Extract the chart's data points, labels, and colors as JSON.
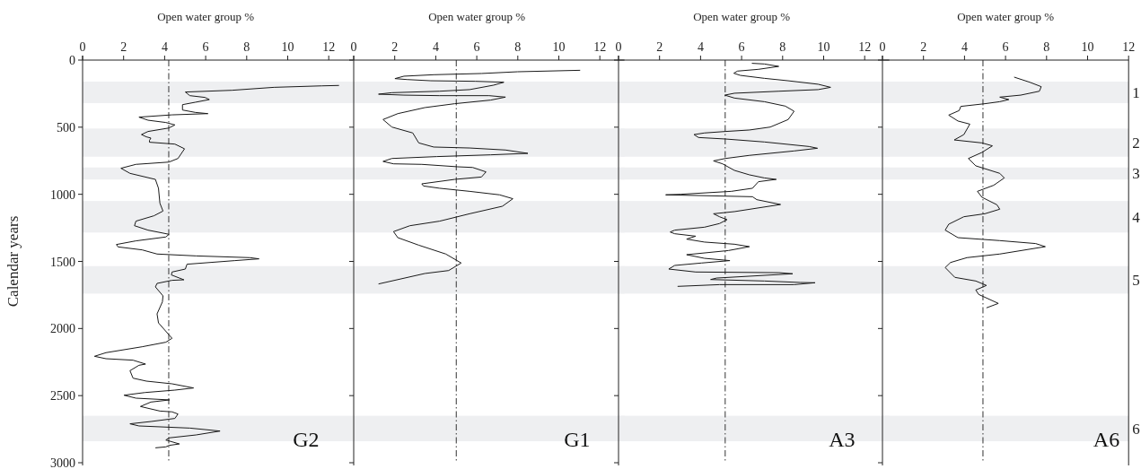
{
  "chart_data": [
    {
      "type": "line",
      "xlabel": "Open water group %",
      "ylabel": "Calendar years",
      "annotations": [
        "G2"
      ],
      "xlim": [
        0,
        13.2
      ],
      "xticks": [
        0,
        2,
        4,
        6,
        8,
        10,
        12
      ],
      "ylim": [
        3000,
        0
      ],
      "yticks": [
        0,
        500,
        1000,
        1500,
        2000,
        2500,
        3000
      ],
      "line_style": "solid",
      "marker": "none",
      "bands": [
        {
          "axis": "y",
          "from": 160,
          "to": 320,
          "color": "#eeeff1"
        },
        {
          "axis": "y",
          "from": 510,
          "to": 720,
          "color": "#eeeff1"
        },
        {
          "axis": "y",
          "from": 800,
          "to": 890,
          "color": "#eeeff1"
        },
        {
          "axis": "y",
          "from": 1050,
          "to": 1285,
          "color": "#eeeff1"
        },
        {
          "axis": "y",
          "from": 1535,
          "to": 1740,
          "color": "#eeeff1"
        },
        {
          "axis": "y",
          "from": 2650,
          "to": 2840,
          "color": "#eeeff1"
        }
      ],
      "ref_lines": [
        {
          "axis": "x",
          "value": 4.2,
          "color": "#333333",
          "line_style": "dashed"
        }
      ],
      "series": [
        {
          "color": "#1a1a1a",
          "x": [
            12.5,
            11.67,
            9.33,
            7.28,
            5.01,
            5.23,
            5.96,
            6.18,
            5.5,
            4.87,
            4.87,
            5.5,
            6.11,
            4.36,
            2.75,
            3.19,
            4.06,
            4.5,
            4.21,
            3.19,
            2.87,
            3.11,
            3.33,
            3.26,
            3.26,
            4.5,
            4.97,
            4.65,
            4.21,
            2.6,
            1.87,
            2.31,
            3.55,
            3.7,
            3.77,
            3.92,
            3.48,
            2.6,
            2.53,
            3.19,
            4.21,
            4.06,
            2.6,
            1.65,
            1.73,
            2.9,
            3.63,
            5.53,
            8.16,
            8.6,
            7.43,
            5.09,
            5.01,
            4.36,
            4.33,
            4.72,
            4.94,
            4.36,
            3.63,
            3.55,
            3.92,
            3.89,
            3.63,
            3.7,
            4.21,
            4.36,
            4.06,
            2.9,
            1.14,
            0.58,
            1.14,
            2.46,
            3.07,
            2.75,
            2.31,
            2.46,
            3.11,
            4.36,
            5.41,
            4.5,
            3.04,
            2.02,
            2.6,
            4.24,
            3.33,
            2.82,
            3.77,
            4.36,
            4.65,
            4.5,
            3.33,
            2.31,
            2.75,
            5.23,
            6.7,
            5.53,
            4.21,
            4.06,
            4.72,
            4.21,
            4.06,
            3.55
          ],
          "values": [
            189,
            192,
            203,
            225,
            238,
            265,
            278,
            294,
            314,
            332,
            372,
            390,
            399,
            408,
            425,
            448,
            465,
            483,
            506,
            532,
            555,
            572,
            581,
            599,
            612,
            626,
            661,
            733,
            760,
            777,
            806,
            844,
            889,
            955,
            1067,
            1125,
            1160,
            1200,
            1234,
            1267,
            1298,
            1318,
            1347,
            1374,
            1392,
            1414,
            1445,
            1459,
            1472,
            1481,
            1494,
            1521,
            1557,
            1579,
            1601,
            1624,
            1637,
            1641,
            1664,
            1690,
            1757,
            1802,
            1891,
            1958,
            2047,
            2073,
            2102,
            2136,
            2180,
            2207,
            2225,
            2236,
            2265,
            2274,
            2314,
            2370,
            2392,
            2412,
            2443,
            2459,
            2477,
            2497,
            2519,
            2532,
            2548,
            2581,
            2615,
            2621,
            2637,
            2670,
            2693,
            2710,
            2726,
            2742,
            2764,
            2793,
            2815,
            2831,
            2860,
            2871,
            2882,
            2889
          ]
        }
      ]
    },
    {
      "type": "line",
      "xlabel": "Open water group %",
      "annotations": [
        "G1"
      ],
      "xlim": [
        0,
        13.2
      ],
      "xticks": [
        0,
        2,
        4,
        6,
        8,
        10,
        12
      ],
      "ylim": [
        3000,
        0
      ],
      "yticks": [
        0,
        500,
        1000,
        1500,
        2000,
        2500,
        3000
      ],
      "tick_labels": "x",
      "line_style": "solid",
      "marker": "none",
      "bands": [
        {
          "axis": "y",
          "from": 160,
          "to": 320,
          "color": "#eeeff1"
        },
        {
          "axis": "y",
          "from": 510,
          "to": 720,
          "color": "#eeeff1"
        },
        {
          "axis": "y",
          "from": 800,
          "to": 890,
          "color": "#eeeff1"
        },
        {
          "axis": "y",
          "from": 1050,
          "to": 1285,
          "color": "#eeeff1"
        },
        {
          "axis": "y",
          "from": 1535,
          "to": 1740,
          "color": "#eeeff1"
        },
        {
          "axis": "y",
          "from": 2650,
          "to": 2840,
          "color": "#eeeff1"
        }
      ],
      "ref_lines": [
        {
          "axis": "x",
          "value": 5,
          "color": "#333333",
          "line_style": "dashed"
        }
      ],
      "series": [
        {
          "color": "#1a1a1a",
          "x": [
            11.04,
            7.98,
            6.23,
            3.9,
            2.45,
            2.01,
            2.59,
            3.76,
            5.94,
            7.32,
            6.82,
            5.65,
            4.19,
            1.86,
            1.21,
            2.45,
            4.19,
            6.6,
            7.4,
            6.68,
            4.92,
            3.47,
            2.15,
            1.43,
            1.86,
            2.88,
            3.17,
            3.9,
            5.65,
            7.4,
            8.49,
            6.67,
            4.05,
            1.86,
            1.43,
            1.94,
            3.32,
            5.07,
            5.8,
            6.45,
            6.23,
            4.92,
            3.32,
            3.4,
            4.19,
            5.65,
            7.11,
            7.76,
            7.25,
            5.65,
            4.19,
            2.74,
            1.94,
            2.15,
            3.17,
            4.49,
            5.24,
            4.63,
            3.47,
            1.21
          ],
          "values": [
            76,
            87,
            100,
            109,
            120,
            138,
            145,
            154,
            158,
            165,
            187,
            220,
            232,
            243,
            254,
            261,
            265,
            265,
            276,
            298,
            325,
            354,
            399,
            443,
            499,
            543,
            617,
            648,
            655,
            670,
            695,
            706,
            719,
            733,
            755,
            773,
            777,
            795,
            800,
            833,
            871,
            889,
            922,
            938,
            955,
            978,
            1004,
            1033,
            1089,
            1145,
            1200,
            1234,
            1278,
            1323,
            1379,
            1445,
            1512,
            1568,
            1590,
            1668
          ]
        }
      ]
    },
    {
      "type": "line",
      "xlabel": "Open water group %",
      "annotations": [
        "A3"
      ],
      "xlim": [
        0,
        13.2
      ],
      "xticks": [
        0,
        2,
        4,
        6,
        8,
        10,
        12
      ],
      "ylim": [
        3000,
        0
      ],
      "yticks": [
        0,
        500,
        1000,
        1500,
        2000,
        2500,
        3000
      ],
      "tick_labels": "x",
      "line_style": "solid",
      "marker": "none",
      "bands": [
        {
          "axis": "y",
          "from": 160,
          "to": 320,
          "color": "#eeeff1"
        },
        {
          "axis": "y",
          "from": 510,
          "to": 720,
          "color": "#eeeff1"
        },
        {
          "axis": "y",
          "from": 800,
          "to": 890,
          "color": "#eeeff1"
        },
        {
          "axis": "y",
          "from": 1050,
          "to": 1285,
          "color": "#eeeff1"
        },
        {
          "axis": "y",
          "from": 1535,
          "to": 1740,
          "color": "#eeeff1"
        },
        {
          "axis": "y",
          "from": 2650,
          "to": 2840,
          "color": "#eeeff1"
        }
      ],
      "ref_lines": [
        {
          "axis": "x",
          "value": 5.2,
          "color": "#333333",
          "line_style": "dashed"
        }
      ],
      "series": [
        {
          "color": "#1a1a1a",
          "x": [
            6.5,
            7.11,
            7.81,
            6.82,
            5.8,
            5.62,
            5.94,
            7.11,
            8.27,
            9.73,
            10.34,
            9.73,
            7.83,
            5.65,
            5.18,
            5.65,
            7.11,
            8.13,
            8.56,
            8.27,
            7.4,
            6.38,
            5.21,
            4.19,
            3.68,
            3.9,
            5.21,
            7.11,
            9.29,
            9.7,
            8.56,
            6.38,
            5.21,
            4.63,
            5.07,
            5.65,
            6.38,
            7.11,
            7.69,
            6.82,
            6.53,
            5.5,
            3.03,
            2.3,
            6.53,
            6.74,
            7.9,
            5.65,
            4.63,
            4.92,
            5.29,
            4.92,
            4.19,
            2.74,
            2.52,
            2.74,
            3.76,
            3.32,
            4.19,
            5.65,
            6.38,
            5.36,
            3.32,
            4.19,
            5.43,
            4.05,
            2.74,
            2.45,
            3.76,
            7.83,
            8.49,
            4.78,
            4.49,
            7.11,
            8.85,
            9.58,
            8.56,
            4.92,
            2.88
          ],
          "values": [
            24,
            29,
            47,
            69,
            82,
            98,
            114,
            136,
            154,
            180,
            203,
            220,
            232,
            247,
            261,
            283,
            310,
            343,
            381,
            443,
            499,
            521,
            532,
            543,
            555,
            577,
            588,
            610,
            644,
            657,
            677,
            710,
            733,
            751,
            773,
            822,
            855,
            878,
            889,
            906,
            955,
            978,
            1000,
            1004,
            1018,
            1040,
            1076,
            1129,
            1145,
            1167,
            1189,
            1218,
            1245,
            1267,
            1281,
            1294,
            1312,
            1334,
            1356,
            1372,
            1390,
            1419,
            1450,
            1477,
            1494,
            1512,
            1530,
            1557,
            1579,
            1584,
            1592,
            1624,
            1635,
            1646,
            1657,
            1659,
            1673,
            1673,
            1686
          ]
        }
      ]
    },
    {
      "type": "line",
      "xlabel": "Open water group %",
      "annotations": [
        "A6"
      ],
      "xlim": [
        0,
        12
      ],
      "xticks": [
        0,
        2,
        4,
        6,
        8,
        10,
        12
      ],
      "ylim": [
        3000,
        0
      ],
      "yticks": [
        0,
        500,
        1000,
        1500,
        2000,
        2500,
        3000
      ],
      "tick_labels": "x",
      "line_style": "solid",
      "marker": "none",
      "bands": [
        {
          "axis": "y",
          "from": 160,
          "to": 320,
          "color": "#eeeff1",
          "label": "1"
        },
        {
          "axis": "y",
          "from": 510,
          "to": 720,
          "color": "#eeeff1",
          "label": "2"
        },
        {
          "axis": "y",
          "from": 800,
          "to": 890,
          "color": "#eeeff1",
          "label": "3"
        },
        {
          "axis": "y",
          "from": 1050,
          "to": 1285,
          "color": "#eeeff1",
          "label": "4"
        },
        {
          "axis": "y",
          "from": 1535,
          "to": 1740,
          "color": "#eeeff1",
          "label": "5"
        },
        {
          "axis": "y",
          "from": 2650,
          "to": 2840,
          "color": "#eeeff1",
          "label": "6"
        }
      ],
      "ref_lines": [
        {
          "axis": "x",
          "value": 4.9,
          "color": "#333333",
          "line_style": "dashed"
        }
      ],
      "series": [
        {
          "color": "#1a1a1a",
          "x": [
            6.42,
            7.18,
            7.74,
            7.65,
            6.74,
            5.72,
            6.16,
            5.72,
            4.99,
            3.82,
            3.74,
            3.23,
            3.68,
            4.26,
            3.97,
            3.5,
            4.85,
            5.36,
            4.85,
            4.19,
            4.55,
            5.72,
            5.94,
            5.42,
            4.63,
            4.85,
            5.58,
            5.72,
            4.99,
            3.97,
            3.23,
            3.06,
            3.68,
            5.72,
            7.47,
            7.94,
            5.72,
            4.12,
            3.32,
            3.06,
            3.53,
            4.55,
            5.07,
            4.55,
            4.69,
            5.65,
            5.07
          ],
          "values": [
            127,
            165,
            198,
            232,
            261,
            276,
            294,
            310,
            325,
            345,
            376,
            410,
            454,
            477,
            555,
            595,
            617,
            639,
            688,
            733,
            788,
            844,
            878,
            933,
            978,
            1022,
            1078,
            1111,
            1145,
            1167,
            1223,
            1267,
            1323,
            1345,
            1367,
            1390,
            1445,
            1472,
            1508,
            1546,
            1619,
            1646,
            1679,
            1713,
            1746,
            1813,
            1846
          ]
        }
      ]
    }
  ]
}
